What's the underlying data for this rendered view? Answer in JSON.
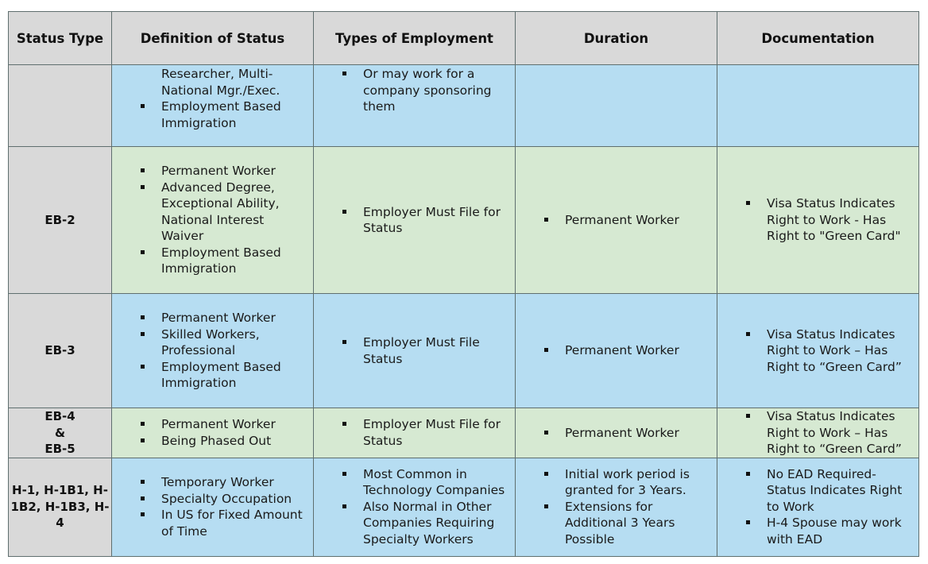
{
  "headers": [
    "Status Type",
    "Definition of Status",
    "Types of Employment",
    "Duration",
    "Documentation"
  ],
  "rows": [
    {
      "status": [],
      "definition": [
        {
          "text": "Researcher, Multi-National Mgr./Exec.",
          "bullet": false
        },
        {
          "text": "Employment Based Immigration",
          "bullet": true
        }
      ],
      "employment": [
        {
          "text": "Or may work for a company sponsoring them",
          "bullet": true
        }
      ],
      "duration": [],
      "documentation": []
    },
    {
      "status": [
        "EB-2"
      ],
      "definition": [
        {
          "text": "Permanent Worker",
          "bullet": true
        },
        {
          "text": "Advanced Degree, Exceptional Ability, National Interest Waiver",
          "bullet": true
        },
        {
          "text": "Employment Based Immigration",
          "bullet": true
        }
      ],
      "employment": [
        {
          "text": "Employer Must File for Status",
          "bullet": true
        }
      ],
      "duration": [
        {
          "text": "Permanent Worker",
          "bullet": true
        }
      ],
      "documentation": [
        {
          "text": "Visa Status Indicates Right to Work - Has Right to \"Green Card\"",
          "bullet": true
        }
      ]
    },
    {
      "status": [
        "EB-3"
      ],
      "definition": [
        {
          "text": "Permanent Worker",
          "bullet": true
        },
        {
          "text": "Skilled Workers, Professional",
          "bullet": true
        },
        {
          "text": "Employment Based Immigration",
          "bullet": true
        }
      ],
      "employment": [
        {
          "text": "Employer Must File Status",
          "bullet": true
        }
      ],
      "duration": [
        {
          "text": "Permanent Worker",
          "bullet": true
        }
      ],
      "documentation": [
        {
          "text": "Visa Status Indicates Right to Work – Has Right to “Green Card”",
          "bullet": true
        }
      ]
    },
    {
      "status": [
        "EB-4",
        "&",
        "EB-5"
      ],
      "definition": [
        {
          "text": "Permanent Worker",
          "bullet": true
        },
        {
          "text": "Being Phased Out",
          "bullet": true
        }
      ],
      "employment": [
        {
          "text": "Employer Must File for Status",
          "bullet": true
        }
      ],
      "duration": [
        {
          "text": "Permanent Worker",
          "bullet": true
        }
      ],
      "documentation": [
        {
          "text": "Visa Status Indicates Right to Work – Has Right to “Green Card”",
          "bullet": true
        }
      ]
    },
    {
      "status": [
        "H-1, H-1B1, H-",
        "1B2, H-1B3, H-",
        "4"
      ],
      "definition": [
        {
          "text": "Temporary Worker",
          "bullet": true
        },
        {
          "text": "Specialty Occupation",
          "bullet": true
        },
        {
          "text": "In US for Fixed Amount of Time",
          "bullet": true
        }
      ],
      "employment": [
        {
          "text": "Most Common in Technology Companies",
          "bullet": true
        },
        {
          "text": "Also Normal in Other Companies Requiring Specialty Workers",
          "bullet": true
        }
      ],
      "duration": [
        {
          "text": "Initial work period is granted for 3 Years.",
          "bullet": true
        },
        {
          "text": "Extensions for Additional 3 Years Possible",
          "bullet": true
        }
      ],
      "documentation": [
        {
          "text": "No EAD Required- Status Indicates Right to Work",
          "bullet": true
        },
        {
          "text": "H-4 Spouse may work with EAD",
          "bullet": true
        }
      ]
    }
  ]
}
